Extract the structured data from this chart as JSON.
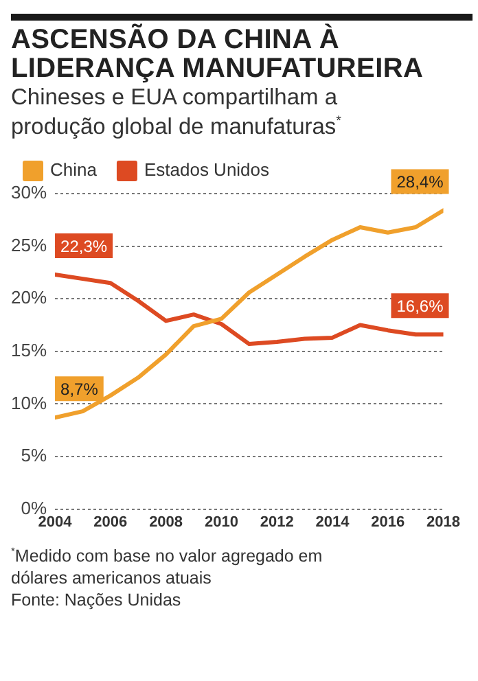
{
  "chart_data": {
    "type": "line",
    "title": "ASCENSÃO DA CHINA À LIDERANÇA MANUFATUREIRA",
    "subtitle": "Chineses e EUA compartilham a produção global de manufaturas$^{*}$",
    "x": [
      2004,
      2005,
      2006,
      2007,
      2008,
      2009,
      2010,
      2011,
      2012,
      2013,
      2014,
      2015,
      2016,
      2017,
      2018
    ],
    "series": [
      {
        "name": "China",
        "color": "#f0a02c",
        "values": [
          8.7,
          9.3,
          10.8,
          12.5,
          14.7,
          17.4,
          18.1,
          20.6,
          22.3,
          24.0,
          25.6,
          26.8,
          26.3,
          26.8,
          28.4
        ],
        "value_labels": [
          "8,7%",
          null,
          null,
          null,
          null,
          null,
          null,
          null,
          null,
          null,
          null,
          null,
          null,
          null,
          "28,4%"
        ]
      },
      {
        "name": "Estados Unidos",
        "color": "#dd4a22",
        "values": [
          22.3,
          21.9,
          21.5,
          19.8,
          17.9,
          18.5,
          17.6,
          15.7,
          15.9,
          16.2,
          16.3,
          17.5,
          17.0,
          16.6,
          16.6
        ],
        "value_labels": [
          "22,3%",
          null,
          null,
          null,
          null,
          null,
          null,
          null,
          null,
          null,
          null,
          null,
          null,
          null,
          "16,6%"
        ]
      }
    ],
    "xlim": [
      2004,
      2018
    ],
    "xticks": [
      2004,
      2006,
      2008,
      2010,
      2012,
      2014,
      2016,
      2018
    ],
    "ylim": [
      0,
      30
    ],
    "yticks": [
      {
        "value": 0,
        "label": "0%"
      },
      {
        "value": 5,
        "label": "5%"
      },
      {
        "value": 10,
        "label": "10%"
      },
      {
        "value": 15,
        "label": "15%"
      },
      {
        "value": 20,
        "label": "20%"
      },
      {
        "value": 25,
        "label": "25%"
      },
      {
        "value": 30,
        "label": "30%"
      }
    ],
    "grid": "y",
    "legend": "top left",
    "marker": "none",
    "line_style": "solid",
    "annotations": [
      "$^{*}$Medido com base no valor agregado em dólares americanos atuais",
      "Fonte: Nações Unidas"
    ]
  }
}
